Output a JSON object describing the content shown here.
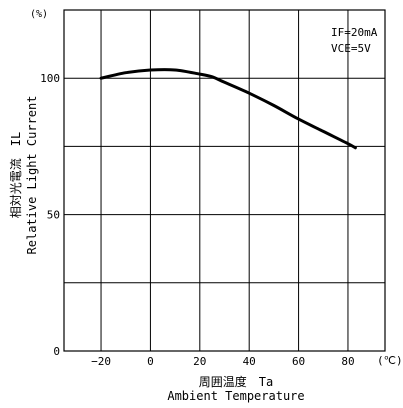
{
  "chart_data": {
    "type": "line",
    "y_unit": "(%)",
    "x_unit": "(℃)",
    "xlim": [
      -35,
      95
    ],
    "ylim": [
      0,
      125
    ],
    "x_ticks": [
      -20,
      0,
      20,
      40,
      60,
      80
    ],
    "y_ticks": [
      0,
      50,
      100
    ],
    "x_tick_labels": [
      "−20",
      "0",
      "20",
      "40",
      "60",
      "80"
    ],
    "y_tick_labels": [
      "0",
      "50",
      "100"
    ],
    "x_gridlines": [
      -20,
      0,
      20,
      40,
      60,
      80
    ],
    "y_gridlines": [
      25,
      50,
      75,
      100,
      125
    ],
    "grid": true,
    "xlabel_jp": "周囲温度　Ta",
    "xlabel_en": "Ambient Temperature",
    "ylabel_jp": "相対光電流　IL",
    "ylabel_en": "Relative Light Current",
    "conditions": [
      "IF=20mA",
      "VCE=5V"
    ],
    "legend_position": "top-right",
    "series": [
      {
        "x": [
          -20,
          -10,
          0,
          10,
          20,
          25,
          30,
          40,
          50,
          60,
          70,
          80,
          83
        ],
        "y": [
          100,
          102,
          103,
          103,
          101.5,
          100.5,
          98.5,
          94.5,
          90,
          85,
          80.5,
          76,
          74.5
        ]
      }
    ]
  }
}
